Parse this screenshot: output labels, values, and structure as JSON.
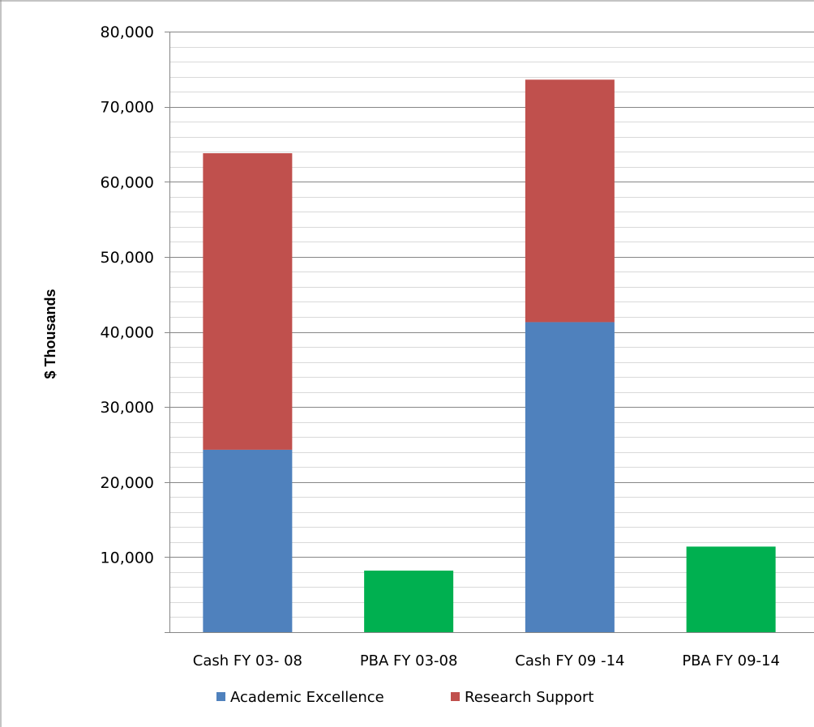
{
  "chart_data": {
    "type": "bar",
    "stacked": true,
    "title": "",
    "xlabel": "",
    "ylabel": "$ Thousands",
    "ylim": [
      0,
      80000
    ],
    "y_major_step": 10000,
    "y_minor_step": 2000,
    "y_tick_labels": [
      "10,000",
      "20,000",
      "30,000",
      "40,000",
      "50,000",
      "60,000",
      "70,000",
      "80,000"
    ],
    "grid": true,
    "legend_position": "bottom",
    "categories": [
      "Cash FY 03- 08",
      "PBA FY 03-08",
      "Cash FY 09 -14",
      "PBA FY 09-14"
    ],
    "series": [
      {
        "name": "Academic Excellence",
        "color": "#4F81BD",
        "values": [
          24300,
          0,
          41300,
          0
        ],
        "in_legend": true
      },
      {
        "name": "Research Support",
        "color": "#C0504D",
        "values": [
          39500,
          0,
          32300,
          0
        ],
        "in_legend": true
      },
      {
        "name": "",
        "color": "#00B050",
        "values": [
          0,
          8200,
          0,
          11400
        ],
        "in_legend": false
      }
    ]
  }
}
